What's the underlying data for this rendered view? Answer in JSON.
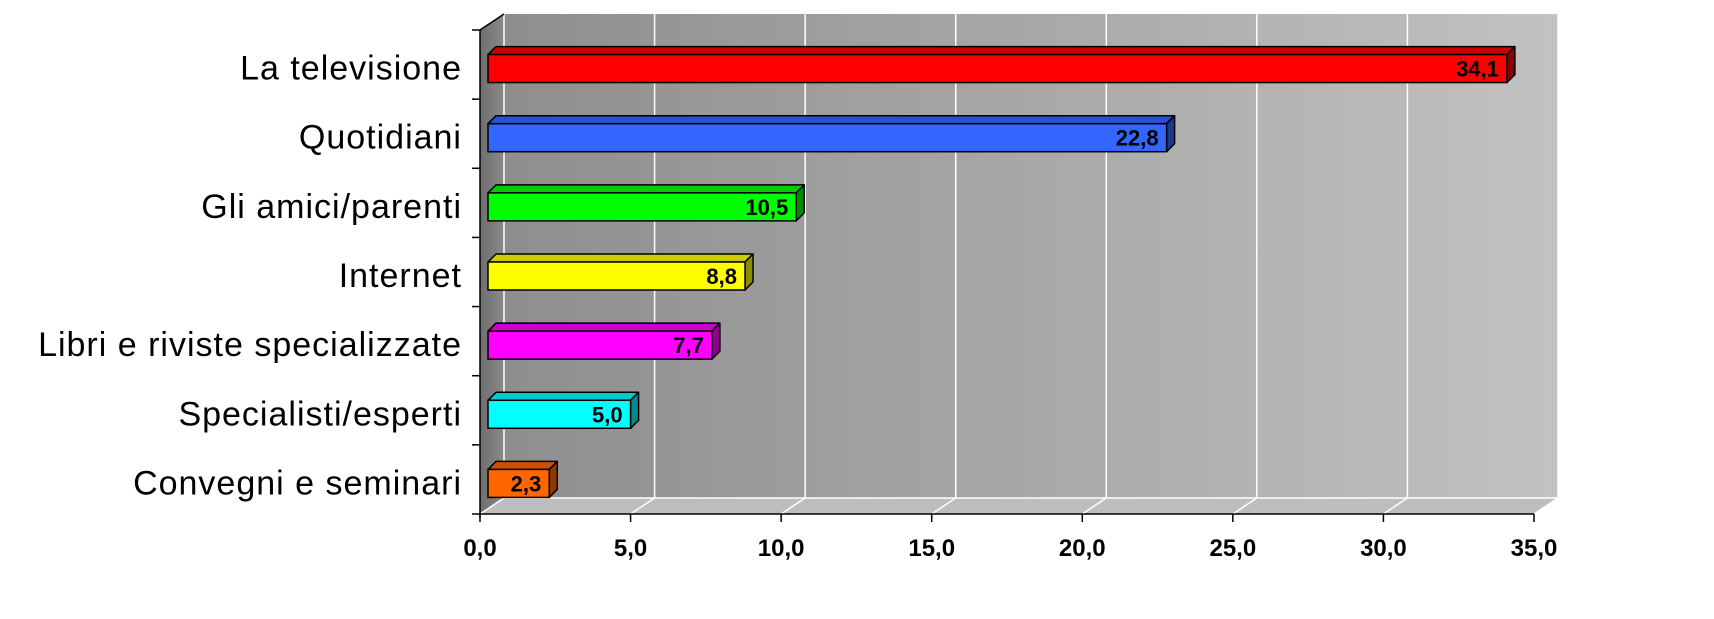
{
  "chart_data": {
    "type": "bar",
    "orientation": "horizontal",
    "style": "3d",
    "categories": [
      "La televisione",
      "Quotidiani",
      "Gli amici/parenti",
      "Internet",
      "Libri e riviste specializzate",
      "Specialisti/esperti",
      "Convegni e seminari"
    ],
    "values": [
      34.1,
      22.8,
      10.5,
      8.8,
      7.7,
      5.0,
      2.3
    ],
    "data_labels": [
      "34,1",
      "22,8",
      "10,5",
      "8,8",
      "7,7",
      "5,0",
      "2,3"
    ],
    "bar_colors": [
      "#ff0000",
      "#3366ff",
      "#00ff00",
      "#ffff00",
      "#ff00ff",
      "#00ffff",
      "#ff6600"
    ],
    "x_ticks": [
      0,
      5,
      10,
      15,
      20,
      25,
      30,
      35
    ],
    "x_tick_labels": [
      "0,0",
      "5,0",
      "10,0",
      "15,0",
      "20,0",
      "25,0",
      "30,0",
      "35,0"
    ],
    "xlim": [
      0,
      35
    ],
    "title": "",
    "xlabel": "",
    "ylabel": "",
    "grid": true,
    "legend": false,
    "plot_background": "#a9a9a9"
  }
}
